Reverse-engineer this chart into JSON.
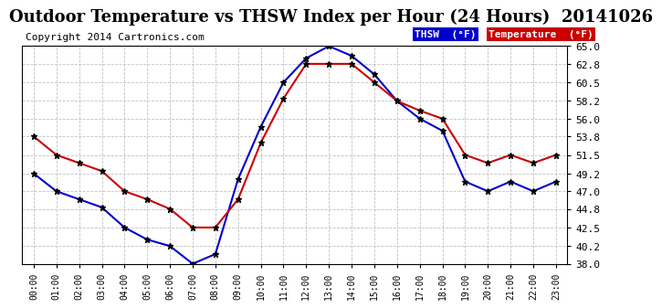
{
  "title": "Outdoor Temperature vs THSW Index per Hour (24 Hours)  20141026",
  "copyright": "Copyright 2014 Cartronics.com",
  "hours": [
    "00:00",
    "01:00",
    "02:00",
    "03:00",
    "04:00",
    "05:00",
    "06:00",
    "07:00",
    "08:00",
    "09:00",
    "10:00",
    "11:00",
    "12:00",
    "13:00",
    "14:00",
    "15:00",
    "16:00",
    "17:00",
    "18:00",
    "19:00",
    "20:00",
    "21:00",
    "22:00",
    "23:00"
  ],
  "thsw": [
    49.2,
    47.0,
    46.0,
    45.0,
    42.5,
    41.0,
    40.2,
    38.0,
    39.2,
    48.5,
    55.0,
    60.5,
    63.5,
    65.0,
    63.8,
    61.5,
    58.2,
    56.0,
    54.5,
    48.2,
    47.0,
    48.2,
    47.0,
    48.2
  ],
  "temperature": [
    53.8,
    51.5,
    50.5,
    49.5,
    47.0,
    46.0,
    44.8,
    42.5,
    42.5,
    46.0,
    53.0,
    58.5,
    62.8,
    62.8,
    62.8,
    60.5,
    58.2,
    57.0,
    56.0,
    51.5,
    50.5,
    51.5,
    50.5,
    51.5
  ],
  "thsw_color": "#0000cc",
  "temp_color": "#cc0000",
  "bg_color": "#ffffff",
  "plot_bg_color": "#ffffff",
  "grid_color": "#bbbbbb",
  "ylim": [
    38.0,
    65.0
  ],
  "yticks": [
    38.0,
    40.2,
    42.5,
    44.8,
    47.0,
    49.2,
    51.5,
    53.8,
    56.0,
    58.2,
    60.5,
    62.8,
    65.0
  ],
  "legend_thsw_bg": "#0000cc",
  "legend_temp_bg": "#cc0000",
  "legend_thsw_label": "THSW  (°F)",
  "legend_temp_label": "Temperature  (°F)",
  "title_fontsize": 13,
  "copyright_fontsize": 8,
  "marker": "*",
  "markersize": 5
}
